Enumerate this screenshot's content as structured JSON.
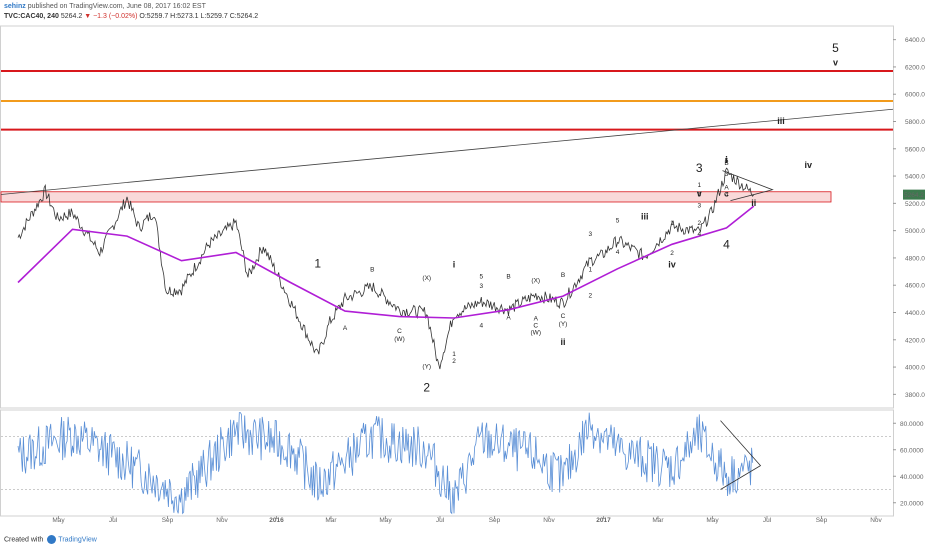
{
  "header": {
    "author": "sehinz",
    "published_text": "published on TradingView.com, June 08, 2017 16:02 EST",
    "symbol": "TVC:CAC40, 240",
    "last": "5264.2",
    "change": "−1.3 (−0.02%)",
    "ohlc": "O:5259.7 H:5273.1 L:5259.7 C:5264.2"
  },
  "footer": {
    "created_with": "Created with",
    "brand": "TradingView"
  },
  "colors": {
    "price_line": "#333333",
    "ma_line": "#b01ed6",
    "resist_red": "#d8181c",
    "resist_orange": "#f29b1c",
    "zone_fill": "#f8d0d0",
    "osc_line": "#5a8fd6",
    "price_tag": "#3d7a4e"
  },
  "chart_data": [
    {
      "type": "line",
      "symbol": "TVC:CAC40",
      "ylim": [
        3700,
        6500
      ],
      "yticks": [
        "6400.0",
        "6200.0",
        "6000.0",
        "5800.0",
        "5600.0",
        "5400.0",
        "5200.0",
        "5000.0",
        "4800.0",
        "4600.0",
        "4400.0",
        "4200.0",
        "4000.0",
        "3800.0"
      ],
      "xticks": [
        "May",
        "Jul",
        "Sep",
        "Nov",
        "2016",
        "Mar",
        "May",
        "Jul",
        "Sep",
        "Nov",
        "2017",
        "Mar",
        "May",
        "Jul",
        "Sep",
        "Nov"
      ],
      "last_price_tag": "5264.2",
      "horizontal_levels": [
        {
          "value": 6170,
          "color": "red"
        },
        {
          "value": 5950,
          "color": "orange"
        },
        {
          "value": 5740,
          "color": "red"
        }
      ],
      "support_zone": [
        5210,
        5285
      ],
      "trendline_start": [
        "Apr 2015",
        5290
      ],
      "trendline_end": [
        "Jul 2017",
        5880
      ],
      "series": [
        {
          "kind": "price",
          "x": [
            "Mar 2015",
            "Apr 2015",
            "Apr 2015",
            "May 2015",
            "Jun 2015",
            "Jul 2015",
            "Jul 2015",
            "Aug 2015",
            "Aug 2015",
            "Sep 2015",
            "Oct 2015",
            "Nov 2015",
            "Nov 2015",
            "Dec 2015",
            "Jan 2016",
            "Feb 2016",
            "Feb 2016",
            "Mar 2016",
            "Apr 2016",
            "May 2016",
            "Jun 2016",
            "Jun 2016",
            "Jul 2016",
            "Aug 2016",
            "Sep 2016",
            "Oct 2016",
            "Nov 2016",
            "Dec 2016",
            "Dec 2016",
            "Jan 2017",
            "Feb 2017",
            "Mar 2017",
            "Apr 2017",
            "Apr 2017",
            "May 2017",
            "Jun 2017"
          ],
          "values": [
            4950,
            5290,
            5090,
            5130,
            4840,
            5240,
            5020,
            5140,
            4560,
            4570,
            4900,
            5060,
            4660,
            4890,
            4480,
            4080,
            4330,
            4500,
            4590,
            4420,
            4400,
            4000,
            4390,
            4480,
            4420,
            4530,
            4470,
            4780,
            4820,
            4930,
            4810,
            5030,
            4990,
            5130,
            5430,
            5264
          ]
        },
        {
          "kind": "moving_average",
          "x": [
            "Mar 2015",
            "May 2015",
            "Jul 2015",
            "Sep 2015",
            "Nov 2015",
            "Jan 2016",
            "Mar 2016",
            "May 2016",
            "Jul 2016",
            "Sep 2016",
            "Nov 2016",
            "Jan 2017",
            "Mar 2017",
            "May 2017",
            "Jun 2017"
          ],
          "values": [
            4620,
            5010,
            4960,
            4780,
            4840,
            4620,
            4410,
            4370,
            4360,
            4420,
            4520,
            4720,
            4900,
            5020,
            5180
          ]
        }
      ],
      "wave_labels": [
        {
          "text": "1",
          "x": "Feb 2016",
          "y": 4730,
          "size": "large"
        },
        {
          "text": "2",
          "x": "Jun 2016",
          "y": 3820,
          "size": "large"
        },
        {
          "text": "3",
          "x": "Apr 2017",
          "y": 5430,
          "size": "large"
        },
        {
          "text": "4",
          "x": "May 2017",
          "y": 4870,
          "size": "large"
        },
        {
          "text": "5",
          "x": "Sep 2017",
          "y": 6310,
          "size": "large"
        },
        {
          "text": "v",
          "x": "Sep 2017",
          "y": 6210,
          "size": "medium"
        },
        {
          "text": "i",
          "x": "Jul 2016",
          "y": 4730,
          "size": "medium"
        },
        {
          "text": "ii",
          "x": "Nov 2016",
          "y": 4160,
          "size": "medium"
        },
        {
          "text": "iii",
          "x": "Feb 2017",
          "y": 5080,
          "size": "medium"
        },
        {
          "text": "iv",
          "x": "Mar 2017",
          "y": 4730,
          "size": "medium"
        },
        {
          "text": "v",
          "x": "Apr 2017",
          "y": 5250,
          "size": "medium"
        },
        {
          "text": "i",
          "x": "May 2017",
          "y": 5500,
          "size": "medium"
        },
        {
          "text": "ii",
          "x": "Jun 2017",
          "y": 5180,
          "size": "medium"
        },
        {
          "text": "iii",
          "x": "Jul 2017",
          "y": 5780,
          "size": "medium"
        },
        {
          "text": "iv",
          "x": "Aug 2017",
          "y": 5460,
          "size": "medium"
        },
        {
          "text": "A",
          "x": "Mar 2016",
          "y": 4270,
          "size": "small"
        },
        {
          "text": "B",
          "x": "Apr 2016",
          "y": 4700,
          "size": "small"
        },
        {
          "text": "C",
          "x": "May 2016",
          "y": 4250,
          "size": "small"
        },
        {
          "text": "(W)",
          "x": "May 2016",
          "y": 4190,
          "size": "small"
        },
        {
          "text": "(X)",
          "x": "Jun 2016",
          "y": 4640,
          "size": "small"
        },
        {
          "text": "(Y)",
          "x": "Jun 2016",
          "y": 3990,
          "size": "small"
        },
        {
          "text": "1",
          "x": "Jul 2016",
          "y": 4080,
          "size": "small"
        },
        {
          "text": "2",
          "x": "Jul 2016",
          "y": 4030,
          "size": "small"
        },
        {
          "text": "3",
          "x": "Aug 2016",
          "y": 4580,
          "size": "small"
        },
        {
          "text": "4",
          "x": "Aug 2016",
          "y": 4290,
          "size": "small"
        },
        {
          "text": "5",
          "x": "Aug 2016",
          "y": 4650,
          "size": "small"
        },
        {
          "text": "A",
          "x": "Sep 2016",
          "y": 4350,
          "size": "small"
        },
        {
          "text": "B",
          "x": "Sep 2016",
          "y": 4650,
          "size": "small"
        },
        {
          "text": "C",
          "x": "Oct 2016",
          "y": 4290,
          "size": "small"
        },
        {
          "text": "(W)",
          "x": "Oct 2016",
          "y": 4240,
          "size": "small"
        },
        {
          "text": "(X)",
          "x": "Oct 2016",
          "y": 4620,
          "size": "small"
        },
        {
          "text": "A",
          "x": "Oct 2016",
          "y": 4340,
          "size": "small"
        },
        {
          "text": "B",
          "x": "Nov 2016",
          "y": 4660,
          "size": "small"
        },
        {
          "text": "C",
          "x": "Nov 2016",
          "y": 4360,
          "size": "small"
        },
        {
          "text": "(Y)",
          "x": "Nov 2016",
          "y": 4300,
          "size": "small"
        },
        {
          "text": "1",
          "x": "Dec 2016",
          "y": 4700,
          "size": "small"
        },
        {
          "text": "2",
          "x": "Dec 2016",
          "y": 4510,
          "size": "small"
        },
        {
          "text": "3",
          "x": "Dec 2016",
          "y": 4960,
          "size": "small"
        },
        {
          "text": "4",
          "x": "Jan 2017",
          "y": 4830,
          "size": "small"
        },
        {
          "text": "5",
          "x": "Jan 2017",
          "y": 5060,
          "size": "small"
        },
        {
          "text": "1",
          "x": "Mar 2017",
          "y": 5040,
          "size": "small"
        },
        {
          "text": "2",
          "x": "Mar 2017",
          "y": 4820,
          "size": "small"
        },
        {
          "text": "3",
          "x": "Apr 2017",
          "y": 5170,
          "size": "small"
        },
        {
          "text": "4",
          "x": "Apr 2017",
          "y": 4960,
          "size": "small"
        },
        {
          "text": "5",
          "x": "Apr 2017",
          "y": 5250,
          "size": "small"
        },
        {
          "text": "1",
          "x": "Apr 2017",
          "y": 5320,
          "size": "small"
        },
        {
          "text": "2",
          "x": "Apr 2017",
          "y": 5040,
          "size": "small"
        },
        {
          "text": "3",
          "x": "May 2017",
          "y": 5400,
          "size": "small"
        },
        {
          "text": "4",
          "x": "May 2017",
          "y": 5250,
          "size": "small"
        },
        {
          "text": "5",
          "x": "May 2017",
          "y": 5500,
          "size": "small"
        },
        {
          "text": "A",
          "x": "May 2017",
          "y": 5300,
          "size": "small"
        },
        {
          "text": "B",
          "x": "May 2017",
          "y": 5480,
          "size": "small"
        },
        {
          "text": "C",
          "x": "May 2017",
          "y": 5250,
          "size": "small"
        }
      ]
    },
    {
      "type": "line",
      "name": "oscillator",
      "ylim": [
        10,
        90
      ],
      "yticks": [
        "80.0000",
        "60.0000",
        "40.0000",
        "20.0000"
      ],
      "levels": [
        70,
        30
      ],
      "x": [
        "Mar 2015",
        "May 2015",
        "Jul 2015",
        "Aug 2015",
        "Sep 2015",
        "Nov 2015",
        "Jan 2016",
        "Feb 2016",
        "Apr 2016",
        "Jun 2016",
        "Jul 2016",
        "Aug 2016",
        "Oct 2016",
        "Nov 2016",
        "Dec 2016",
        "Jan 2017",
        "Mar 2017",
        "Apr 2017",
        "May 2017",
        "Jun 2017"
      ],
      "values": [
        55,
        72,
        50,
        38,
        24,
        75,
        62,
        33,
        70,
        60,
        22,
        68,
        55,
        38,
        80,
        60,
        46,
        70,
        40,
        47
      ]
    }
  ]
}
